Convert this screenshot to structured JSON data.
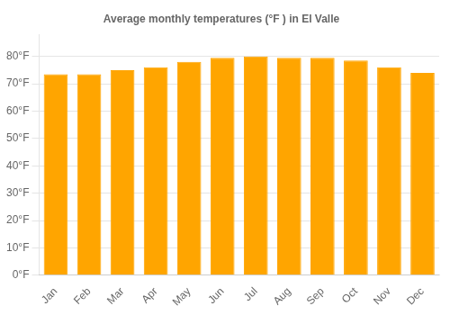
{
  "chart_data": {
    "type": "bar",
    "title": "Average monthly temperatures (°F ) in El Valle",
    "categories": [
      "Jan",
      "Feb",
      "Mar",
      "Apr",
      "May",
      "Jun",
      "Jul",
      "Aug",
      "Sep",
      "Oct",
      "Nov",
      "Dec"
    ],
    "values": [
      73.5,
      73.5,
      75.0,
      76.0,
      78.0,
      79.5,
      80.0,
      79.5,
      79.5,
      78.5,
      76.0,
      74.0
    ],
    "color": "#FFA500",
    "ylim": [
      0,
      88
    ],
    "yticks": [
      {
        "value": 0,
        "label": "0°F"
      },
      {
        "value": 10,
        "label": "10°F"
      },
      {
        "value": 20,
        "label": "20°F"
      },
      {
        "value": 30,
        "label": "30°F"
      },
      {
        "value": 40,
        "label": "40°F"
      },
      {
        "value": 50,
        "label": "50°F"
      },
      {
        "value": 60,
        "label": "60°F"
      },
      {
        "value": 70,
        "label": "70°F"
      },
      {
        "value": 80,
        "label": "80°F"
      }
    ],
    "grid": true
  }
}
